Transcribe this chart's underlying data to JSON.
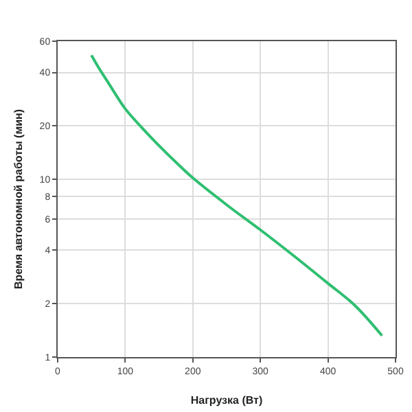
{
  "chart_data": {
    "type": "line",
    "xlabel": "Нагрузка (Вт)",
    "ylabel": "Время автономной работы (мин)",
    "x": [
      50,
      60,
      75,
      100,
      125,
      150,
      175,
      200,
      250,
      300,
      350,
      400,
      440,
      480
    ],
    "series": [
      {
        "color": "#2fbf71",
        "values": [
          50,
          43,
          35,
          25,
          19.5,
          15.5,
          12.5,
          10.2,
          7.2,
          5.2,
          3.7,
          2.6,
          1.95,
          1.32
        ]
      }
    ],
    "xlim": [
      0,
      500
    ],
    "xticks": [
      0,
      100,
      200,
      300,
      400,
      500
    ],
    "ylim": [
      1,
      60
    ],
    "yticks": [
      1,
      2,
      4,
      6,
      8,
      10,
      20,
      40,
      60
    ],
    "log": "y",
    "grid": true,
    "marker": "none",
    "line_style": "solid"
  }
}
